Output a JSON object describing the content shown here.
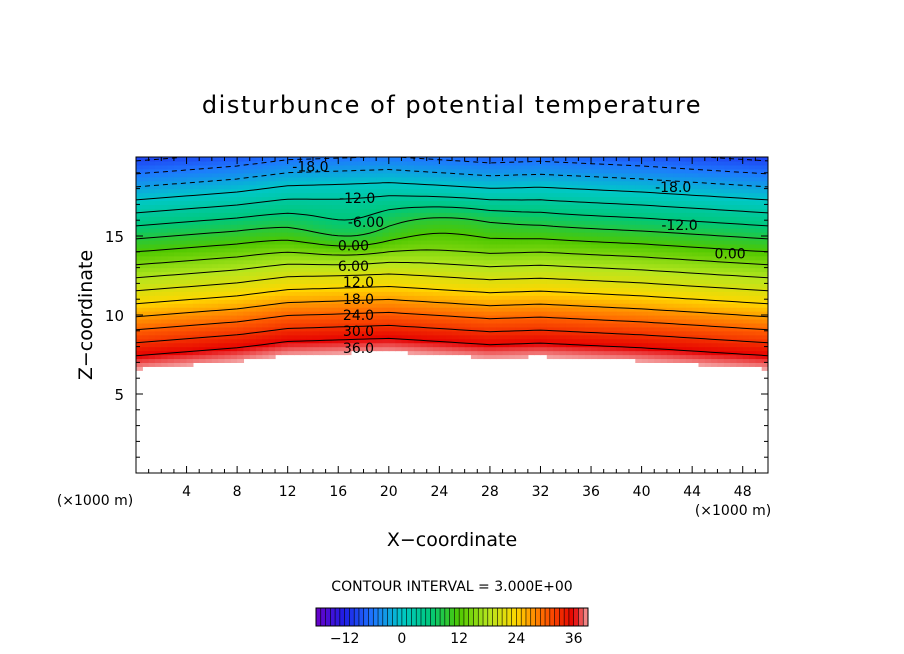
{
  "chart_data": {
    "type": "heatmap",
    "title": "disturbunce of potential temperature",
    "xlabel": "X−coordinate",
    "ylabel": "Z−coordinate",
    "x_unit": "(×1000 m)",
    "z_unit": "(×1000 m)",
    "xlim": [
      0,
      50
    ],
    "ylim": [
      0,
      20
    ],
    "x_ticks": [
      4,
      8,
      12,
      16,
      20,
      24,
      28,
      32,
      36,
      40,
      44,
      48
    ],
    "x_tick_labels": [
      "4",
      "8",
      "12",
      "16",
      "20",
      "24",
      "28",
      "32",
      "36",
      "40",
      "44",
      "48"
    ],
    "y_ticks": [
      5,
      10,
      15
    ],
    "y_tick_labels": [
      "5",
      "10",
      "15"
    ],
    "contour_interval_text": "CONTOUR INTERVAL = 3.000E+00",
    "contour_interval": 3,
    "value_range": [
      -18,
      39
    ],
    "colorbar_ticks": [
      -12,
      0,
      12,
      24,
      36
    ],
    "colorbar_tick_labels": [
      "−12",
      "0",
      "12",
      "24",
      "36"
    ],
    "contour_labels": [
      {
        "text": "-18.0",
        "x": 13.8,
        "z": 19.4
      },
      {
        "text": "-12.0",
        "x": 17.5,
        "z": 17.4
      },
      {
        "text": "-6.00",
        "x": 18.2,
        "z": 15.9
      },
      {
        "text": "0.00",
        "x": 17.2,
        "z": 14.4
      },
      {
        "text": "6.00",
        "x": 17.2,
        "z": 13.1
      },
      {
        "text": "12.0",
        "x": 17.6,
        "z": 12.1
      },
      {
        "text": "18.0",
        "x": 17.6,
        "z": 11.0
      },
      {
        "text": "24.0",
        "x": 17.6,
        "z": 10.0
      },
      {
        "text": "30.0",
        "x": 17.6,
        "z": 9.0
      },
      {
        "text": "36.0",
        "x": 17.6,
        "z": 7.9
      },
      {
        "text": "-18.0",
        "x": 42.5,
        "z": 18.1
      },
      {
        "text": "-12.0",
        "x": 43.0,
        "z": 15.7
      },
      {
        "text": "0.00",
        "x": 47.0,
        "z": 13.9
      }
    ],
    "ground_profile_z": [
      [
        0,
        6.6
      ],
      [
        8,
        7.1
      ],
      [
        12,
        7.5
      ],
      [
        16,
        7.6
      ],
      [
        20,
        7.7
      ],
      [
        24,
        7.5
      ],
      [
        28,
        7.3
      ],
      [
        32,
        7.4
      ],
      [
        40,
        7.1
      ],
      [
        50,
        6.6
      ]
    ],
    "colors": {
      "negative_light": "#a7a7f5",
      "negative_18": "#6a00c8",
      "negative_12": "#1e1ee6",
      "negative_6": "#1e78ff",
      "zero": "#00c8c8",
      "positive_6": "#00c87a",
      "positive_12": "#4ec800",
      "positive_18": "#b4e61e",
      "positive_24": "#ffd700",
      "positive_30": "#ff6000",
      "positive_36": "#e60000",
      "positive_39": "#f4a0a0"
    }
  }
}
